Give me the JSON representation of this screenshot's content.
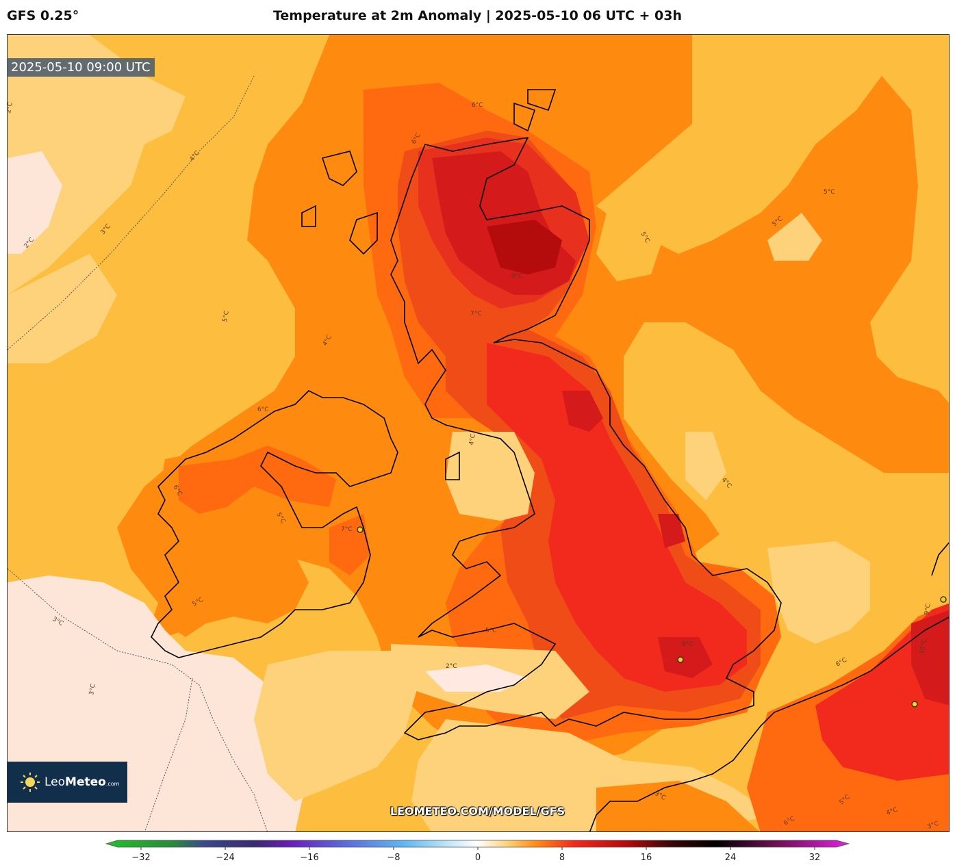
{
  "header": {
    "model": "GFS 0.25°",
    "title": "Temperature at 2m Anomaly | 2025-05-10 06 UTC + 03h"
  },
  "map": {
    "valid_time": "2025-05-10 09:00 UTC",
    "watermark": "LEOMETEO.COM/MODEL/GFS",
    "contour_labels": [
      "2°C",
      "2°C",
      "3°C",
      "3°C",
      "4°C",
      "5°C",
      "6°C",
      "6°C",
      "7°C",
      "9°C",
      "9°C",
      "5°C",
      "5°C",
      "5°C",
      "4°C",
      "4°C",
      "6°C",
      "6°C",
      "7°C",
      "5°C",
      "5°C",
      "5°C",
      "4°C",
      "3°C",
      "2°C",
      "3°C",
      "9°C",
      "10°C",
      "6°C",
      "5°C",
      "6°C",
      "4°C",
      "3°C"
    ]
  },
  "logo": {
    "brand_light": "Leo",
    "brand_bold": "Meteo",
    "suffix": ".com"
  },
  "colorbar": {
    "ticks": [
      "−32",
      "−24",
      "−16",
      "−8",
      "0",
      "8",
      "16",
      "24",
      "32"
    ],
    "min": -32,
    "max": 32,
    "colors": {
      "deep_cold": "#22c02a",
      "cold": "#6a1fb8",
      "cool": "#5fb6f0",
      "neutral": "#ffffff",
      "warm": "#fdbe3f",
      "hot": "#f22a1e",
      "very_hot": "#000000",
      "extreme": "#e020e0"
    }
  }
}
